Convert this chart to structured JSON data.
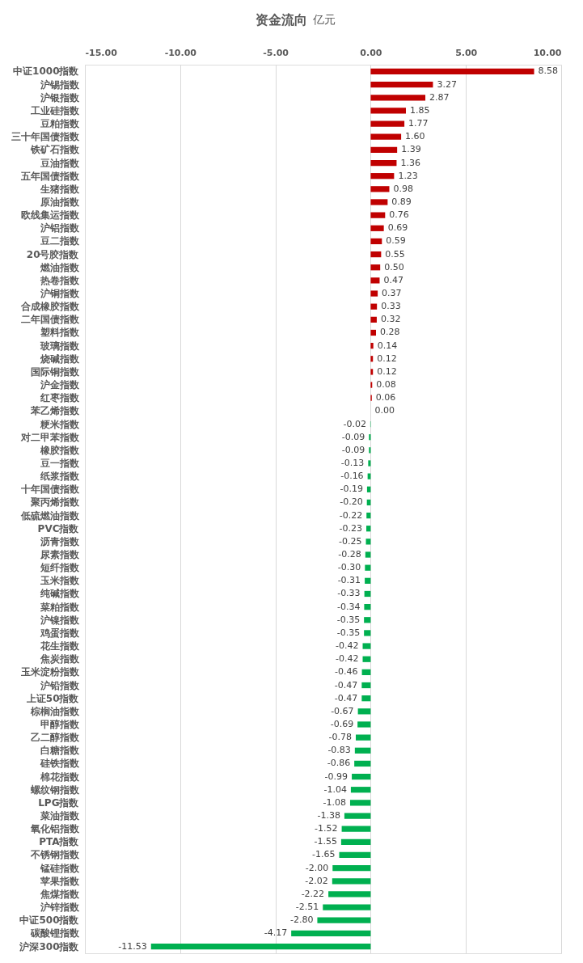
{
  "chart_data": {
    "type": "bar",
    "orientation": "horizontal",
    "title": "资金流向",
    "subtitle": "亿元",
    "categories": [
      "中证1000指数",
      "沪锡指数",
      "沪银指数",
      "工业硅指数",
      "豆粕指数",
      "三十年国债指数",
      "铁矿石指数",
      "豆油指数",
      "五年国债指数",
      "生猪指数",
      "原油指数",
      "欧线集运指数",
      "沪铝指数",
      "豆二指数",
      "20号胶指数",
      "燃油指数",
      "热卷指数",
      "沪铜指数",
      "合成橡胶指数",
      "二年国债指数",
      "塑料指数",
      "玻璃指数",
      "烧碱指数",
      "国际铜指数",
      "沪金指数",
      "红枣指数",
      "苯乙烯指数",
      "粳米指数",
      "对二甲苯指数",
      "橡胶指数",
      "豆一指数",
      "纸浆指数",
      "十年国债指数",
      "聚丙烯指数",
      "低硫燃油指数",
      "PVC指数",
      "沥青指数",
      "尿素指数",
      "短纤指数",
      "玉米指数",
      "纯碱指数",
      "菜粕指数",
      "沪镍指数",
      "鸡蛋指数",
      "花生指数",
      "焦炭指数",
      "玉米淀粉指数",
      "沪铅指数",
      "上证50指数",
      "棕榈油指数",
      "甲醇指数",
      "乙二醇指数",
      "白糖指数",
      "硅铁指数",
      "棉花指数",
      "螺纹钢指数",
      "LPG指数",
      "菜油指数",
      "氧化铝指数",
      "PTA指数",
      "不锈钢指数",
      "锰硅指数",
      "苹果指数",
      "焦煤指数",
      "沪锌指数",
      "中证500指数",
      "碳酸锂指数",
      "沪深300指数"
    ],
    "values": [
      8.58,
      3.27,
      2.87,
      1.85,
      1.77,
      1.6,
      1.39,
      1.36,
      1.23,
      0.98,
      0.89,
      0.76,
      0.69,
      0.59,
      0.55,
      0.5,
      0.47,
      0.37,
      0.33,
      0.32,
      0.28,
      0.14,
      0.12,
      0.12,
      0.08,
      0.06,
      0.0,
      -0.02,
      -0.09,
      -0.09,
      -0.13,
      -0.16,
      -0.19,
      -0.2,
      -0.22,
      -0.23,
      -0.25,
      -0.28,
      -0.3,
      -0.31,
      -0.33,
      -0.34,
      -0.35,
      -0.35,
      -0.42,
      -0.42,
      -0.46,
      -0.47,
      -0.47,
      -0.67,
      -0.69,
      -0.78,
      -0.83,
      -0.86,
      -0.99,
      -1.04,
      -1.08,
      -1.38,
      -1.52,
      -1.55,
      -1.65,
      -2.0,
      -2.02,
      -2.22,
      -2.51,
      -2.8,
      -4.17,
      -11.53
    ],
    "value_labels": [
      "8.58",
      "3.27",
      "2.87",
      "1.85",
      "1.77",
      "1.60",
      "1.39",
      "1.36",
      "1.23",
      "0.98",
      "0.89",
      "0.76",
      "0.69",
      "0.59",
      "0.55",
      "0.50",
      "0.47",
      "0.37",
      "0.33",
      "0.32",
      "0.28",
      "0.14",
      "0.12",
      "0.12",
      "0.08",
      "0.06",
      "0.00",
      "-0.02",
      "-0.09",
      "-0.09",
      "-0.13",
      "-0.16",
      "-0.19",
      "-0.20",
      "-0.22",
      "-0.23",
      "-0.25",
      "-0.28",
      "-0.30",
      "-0.31",
      "-0.33",
      "-0.34",
      "-0.35",
      "-0.35",
      "-0.42",
      "-0.42",
      "-0.46",
      "-0.47",
      "-0.47",
      "-0.67",
      "-0.69",
      "-0.78",
      "-0.83",
      "-0.86",
      "-0.99",
      "-1.04",
      "-1.08",
      "-1.38",
      "-1.52",
      "-1.55",
      "-1.65",
      "-2.00",
      "-2.02",
      "-2.22",
      "-2.51",
      "-2.80",
      "-4.17",
      "-11.53"
    ],
    "colors": [
      "#c00000",
      "#c00000",
      "#c00000",
      "#c00000",
      "#c00000",
      "#c00000",
      "#c00000",
      "#c00000",
      "#c00000",
      "#c00000",
      "#c00000",
      "#c00000",
      "#c00000",
      "#c00000",
      "#c00000",
      "#c00000",
      "#c00000",
      "#c00000",
      "#c00000",
      "#c00000",
      "#c00000",
      "#c00000",
      "#c00000",
      "#c00000",
      "#c00000",
      "#c00000",
      "#c00000",
      "#00b050",
      "#00b050",
      "#00b050",
      "#00b050",
      "#00b050",
      "#00b050",
      "#00b050",
      "#00b050",
      "#00b050",
      "#00b050",
      "#00b050",
      "#00b050",
      "#00b050",
      "#00b050",
      "#00b050",
      "#00b050",
      "#00b050",
      "#00b050",
      "#00b050",
      "#00b050",
      "#00b050",
      "#00b050",
      "#00b050",
      "#00b050",
      "#00b050",
      "#00b050",
      "#00b050",
      "#00b050",
      "#00b050",
      "#00b050",
      "#00b050",
      "#00b050",
      "#00b050",
      "#00b050",
      "#00b050",
      "#00b050",
      "#00b050",
      "#00b050",
      "#00b050",
      "#00b050",
      "#00b050"
    ],
    "xlim": [
      -15,
      10
    ],
    "xticks": [
      {
        "value": -15,
        "label": "-15.00"
      },
      {
        "value": -10,
        "label": "-10.00"
      },
      {
        "value": -5,
        "label": "-5.00"
      },
      {
        "value": 0,
        "label": "0.00"
      },
      {
        "value": 5,
        "label": "5.00"
      },
      {
        "value": 10,
        "label": "10.00"
      }
    ],
    "grid": "x"
  }
}
